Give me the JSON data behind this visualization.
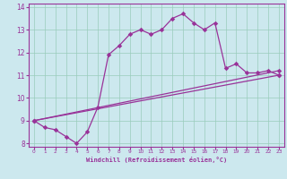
{
  "bg_color": "#cce8ee",
  "line_color": "#993399",
  "grid_color": "#99ccbb",
  "xlabel": "Windchill (Refroidissement éolien,°C)",
  "xlim": [
    -0.5,
    23.5
  ],
  "ylim": [
    7.85,
    14.15
  ],
  "xticks": [
    0,
    1,
    2,
    3,
    4,
    5,
    6,
    7,
    8,
    9,
    10,
    11,
    12,
    13,
    14,
    15,
    16,
    17,
    18,
    19,
    20,
    21,
    22,
    23
  ],
  "yticks": [
    8,
    9,
    10,
    11,
    12,
    13,
    14
  ],
  "line1_x": [
    0,
    23
  ],
  "line1_y": [
    9.0,
    11.0
  ],
  "line2_x": [
    0,
    23
  ],
  "line2_y": [
    9.0,
    11.2
  ],
  "line3_x": [
    0,
    1,
    2,
    3,
    4,
    5,
    6,
    7,
    8,
    9,
    10,
    11,
    12,
    13,
    14,
    15,
    16,
    17,
    18,
    19,
    20,
    21,
    22,
    23
  ],
  "line3_y": [
    9.0,
    8.7,
    8.6,
    8.3,
    8.0,
    8.5,
    9.6,
    11.9,
    12.3,
    12.8,
    13.0,
    12.8,
    13.0,
    13.5,
    13.7,
    13.3,
    13.0,
    13.3,
    11.3,
    11.5,
    11.1,
    11.1,
    11.2,
    11.0
  ]
}
